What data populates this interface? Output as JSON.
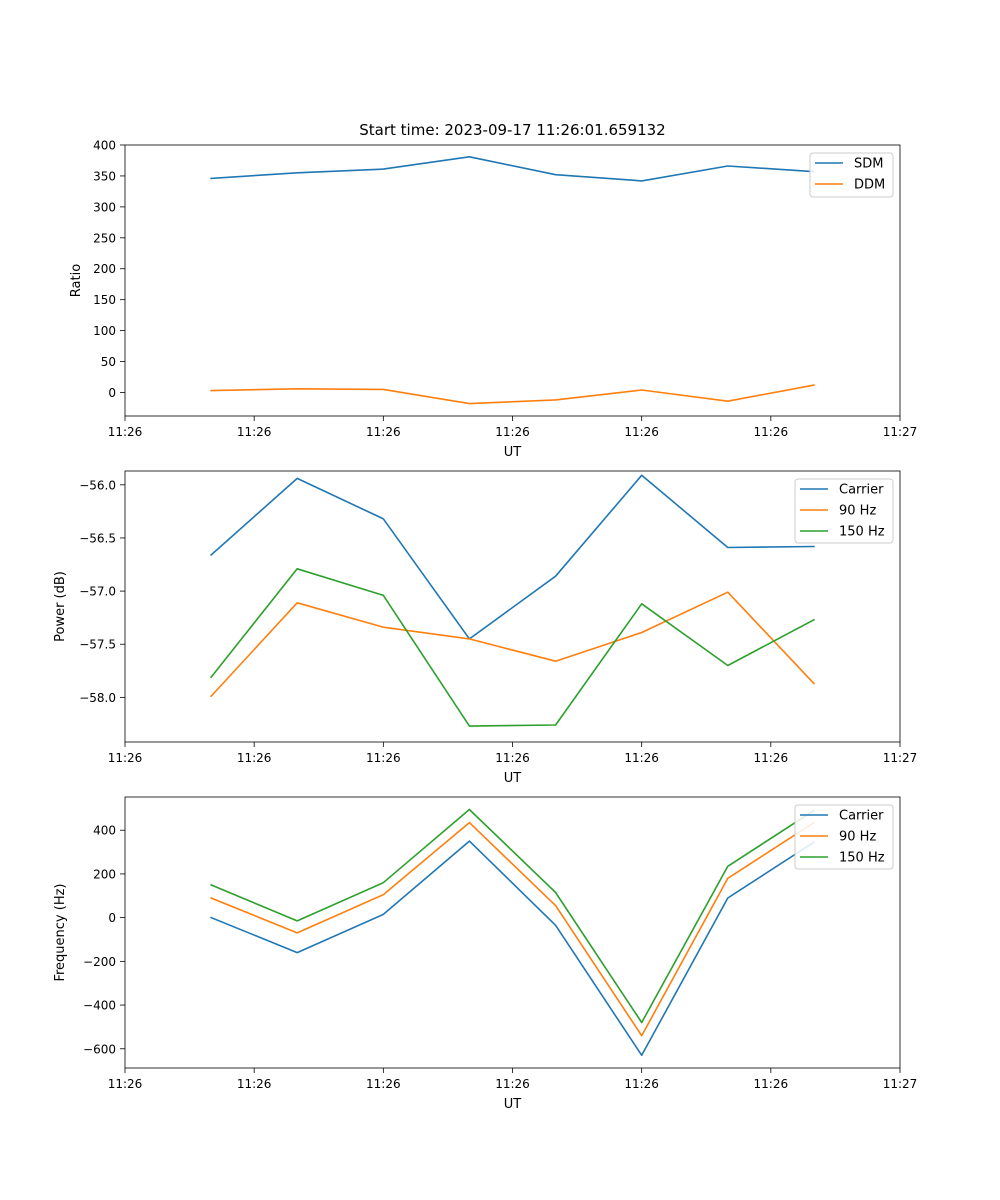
{
  "chart_data": [
    {
      "type": "line",
      "title": "Start time: 2023-09-17 11:26:01.659132",
      "xlabel": "UT",
      "ylabel": "Ratio",
      "xlim": [
        0,
        9
      ],
      "ylim": [
        -38,
        400
      ],
      "x": [
        1,
        2,
        3,
        4,
        5,
        6,
        7,
        8
      ],
      "xticks": [
        0,
        1.5,
        3,
        4.5,
        6,
        7.5,
        9
      ],
      "xtick_labels": [
        "11:26",
        "11:26",
        "11:26",
        "11:26",
        "11:26",
        "11:26",
        "11:27"
      ],
      "yticks": [
        0,
        50,
        100,
        150,
        200,
        250,
        300,
        350,
        400
      ],
      "ytick_labels": [
        "0",
        "50",
        "100",
        "150",
        "200",
        "250",
        "300",
        "350",
        "400"
      ],
      "legend_position": "top-right",
      "series": [
        {
          "name": "SDM",
          "color": "#1f77b4",
          "values": [
            346,
            355,
            361,
            381,
            352,
            342,
            366,
            357
          ]
        },
        {
          "name": "DDM",
          "color": "#ff7f0e",
          "values": [
            3,
            6,
            5,
            -18,
            -12,
            4,
            -14,
            12
          ]
        }
      ]
    },
    {
      "type": "line",
      "title": "",
      "xlabel": "UT",
      "ylabel": "Power (dB)",
      "xlim": [
        0,
        9
      ],
      "ylim": [
        -58.42,
        -55.87
      ],
      "x": [
        1,
        2,
        3,
        4,
        5,
        6,
        7,
        8
      ],
      "xticks": [
        0,
        1.5,
        3,
        4.5,
        6,
        7.5,
        9
      ],
      "xtick_labels": [
        "11:26",
        "11:26",
        "11:26",
        "11:26",
        "11:26",
        "11:26",
        "11:27"
      ],
      "yticks": [
        -58.0,
        -57.5,
        -57.0,
        -56.5,
        -56.0
      ],
      "ytick_labels": [
        "−58.0",
        "−57.5",
        "−57.0",
        "−56.5",
        "−56.0"
      ],
      "legend_position": "top-right",
      "series": [
        {
          "name": "Carrier",
          "color": "#1f77b4",
          "values": [
            -56.66,
            -55.94,
            -56.32,
            -57.45,
            -56.86,
            -55.91,
            -56.59,
            -56.58
          ]
        },
        {
          "name": "90 Hz",
          "color": "#ff7f0e",
          "values": [
            -57.99,
            -57.11,
            -57.34,
            -57.45,
            -57.66,
            -57.39,
            -57.01,
            -57.87
          ]
        },
        {
          "name": "150 Hz",
          "color": "#2ca02c",
          "values": [
            -57.81,
            -56.79,
            -57.04,
            -58.27,
            -58.26,
            -57.12,
            -57.7,
            -57.27
          ]
        }
      ]
    },
    {
      "type": "line",
      "title": "",
      "xlabel": "UT",
      "ylabel": "Frequency (Hz)",
      "xlim": [
        0,
        9
      ],
      "ylim": [
        -688,
        552
      ],
      "x": [
        1,
        2,
        3,
        4,
        5,
        6,
        7,
        8
      ],
      "xticks": [
        0,
        1.5,
        3,
        4.5,
        6,
        7.5,
        9
      ],
      "xtick_labels": [
        "11:26",
        "11:26",
        "11:26",
        "11:26",
        "11:26",
        "11:26",
        "11:27"
      ],
      "yticks": [
        -600,
        -400,
        -200,
        0,
        200,
        400
      ],
      "ytick_labels": [
        "−600",
        "−400",
        "−200",
        "0",
        "200",
        "400"
      ],
      "legend_position": "top-right",
      "series": [
        {
          "name": "Carrier",
          "color": "#1f77b4",
          "values": [
            0,
            -160,
            15,
            350,
            -35,
            -630,
            90,
            345
          ]
        },
        {
          "name": "90 Hz",
          "color": "#ff7f0e",
          "values": [
            90,
            -70,
            105,
            435,
            55,
            -540,
            180,
            435
          ]
        },
        {
          "name": "150 Hz",
          "color": "#2ca02c",
          "values": [
            150,
            -15,
            160,
            495,
            115,
            -480,
            235,
            490
          ]
        }
      ]
    }
  ]
}
